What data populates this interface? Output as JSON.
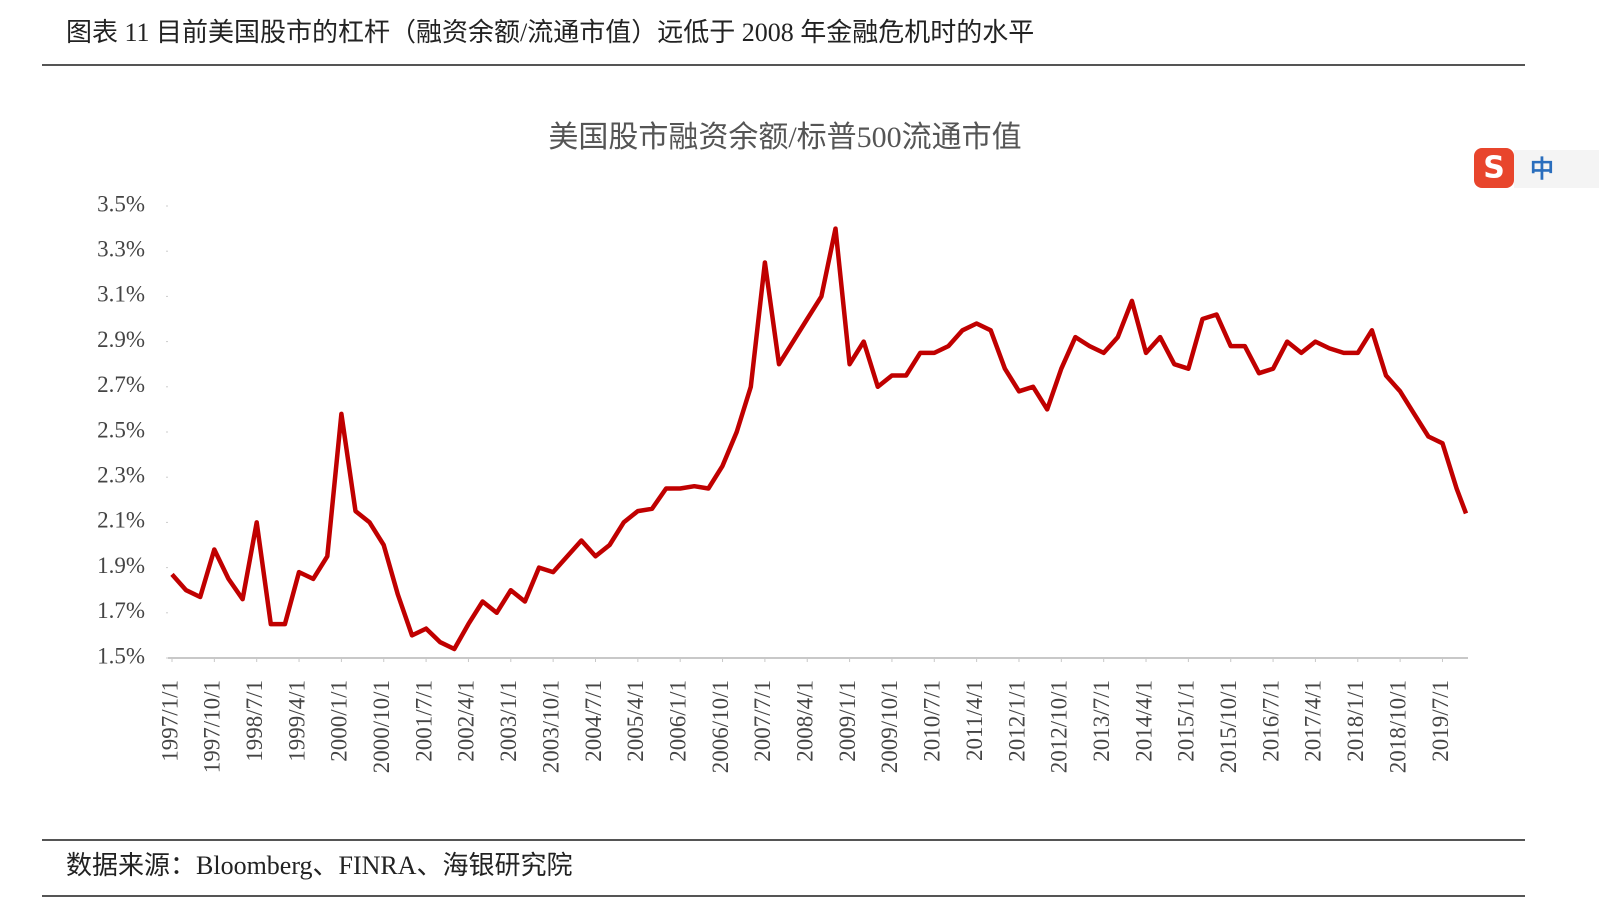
{
  "header": {
    "title": "图表 11  目前美国股市的杠杆（融资余额/流通市值）远低于 2008 年金融危机时的水平"
  },
  "footer": {
    "source": "数据来源：Bloomberg、FINRA、海银研究院"
  },
  "ime_badge": "中",
  "chart_data": {
    "type": "line",
    "title": "美国股市融资余额/标普500流通市值",
    "x": [
      "1997/1/1",
      "1997/4/1",
      "1997/7/1",
      "1997/10/1",
      "1998/1/1",
      "1998/4/1",
      "1998/7/1",
      "1998/10/1",
      "1999/1/1",
      "1999/4/1",
      "1999/7/1",
      "1999/10/1",
      "2000/1/1",
      "2000/4/1",
      "2000/7/1",
      "2000/10/1",
      "2001/1/1",
      "2001/4/1",
      "2001/7/1",
      "2001/10/1",
      "2002/1/1",
      "2002/4/1",
      "2002/7/1",
      "2002/10/1",
      "2003/1/1",
      "2003/4/1",
      "2003/7/1",
      "2003/10/1",
      "2004/1/1",
      "2004/4/1",
      "2004/7/1",
      "2004/10/1",
      "2005/1/1",
      "2005/4/1",
      "2005/7/1",
      "2005/10/1",
      "2006/1/1",
      "2006/4/1",
      "2006/7/1",
      "2006/10/1",
      "2007/1/1",
      "2007/4/1",
      "2007/7/1",
      "2007/10/1",
      "2008/1/1",
      "2008/4/1",
      "2008/7/1",
      "2008/10/1",
      "2009/1/1",
      "2009/4/1",
      "2009/7/1",
      "2009/10/1",
      "2010/1/1",
      "2010/4/1",
      "2010/7/1",
      "2010/10/1",
      "2011/1/1",
      "2011/4/1",
      "2011/7/1",
      "2011/10/1",
      "2012/1/1",
      "2012/4/1",
      "2012/7/1",
      "2012/10/1",
      "2013/1/1",
      "2013/4/1",
      "2013/7/1",
      "2013/10/1",
      "2014/1/1",
      "2014/4/1",
      "2014/7/1",
      "2014/10/1",
      "2015/1/1",
      "2015/4/1",
      "2015/7/1",
      "2015/10/1",
      "2016/1/1",
      "2016/4/1",
      "2016/7/1",
      "2016/10/1",
      "2017/1/1",
      "2017/4/1",
      "2017/7/1",
      "2017/10/1",
      "2018/1/1",
      "2018/4/1",
      "2018/7/1",
      "2018/10/1",
      "2019/1/1",
      "2019/4/1",
      "2019/7/1",
      "2019/10/1",
      "2019/12/1"
    ],
    "series": [
      {
        "color": "#c00000",
        "values": [
          1.87,
          1.8,
          1.77,
          1.98,
          1.85,
          1.76,
          2.1,
          1.65,
          1.65,
          1.88,
          1.85,
          1.95,
          2.58,
          2.15,
          2.1,
          2.0,
          1.78,
          1.6,
          1.63,
          1.57,
          1.54,
          1.65,
          1.75,
          1.7,
          1.8,
          1.75,
          1.9,
          1.88,
          1.95,
          2.02,
          1.95,
          2.0,
          2.1,
          2.15,
          2.16,
          2.25,
          2.25,
          2.26,
          2.25,
          2.35,
          2.5,
          2.7,
          3.25,
          2.8,
          2.9,
          3.0,
          3.1,
          3.4,
          2.8,
          2.9,
          2.7,
          2.75,
          2.75,
          2.85,
          2.85,
          2.88,
          2.95,
          2.98,
          2.95,
          2.78,
          2.68,
          2.7,
          2.6,
          2.78,
          2.92,
          2.88,
          2.85,
          2.92,
          3.08,
          2.85,
          2.92,
          2.8,
          2.78,
          3.0,
          3.02,
          2.88,
          2.88,
          2.76,
          2.78,
          2.9,
          2.85,
          2.9,
          2.87,
          2.85,
          2.85,
          2.95,
          2.75,
          2.68,
          2.58,
          2.48,
          2.45,
          2.25,
          2.14
        ]
      }
    ],
    "xlim": [
      "1997/1/1",
      "2019/12/1"
    ],
    "xticks": [
      "1997/1/1",
      "1997/10/1",
      "1998/7/1",
      "1999/4/1",
      "2000/1/1",
      "2000/10/1",
      "2001/7/1",
      "2002/4/1",
      "2003/1/1",
      "2003/10/1",
      "2004/7/1",
      "2005/4/1",
      "2006/1/1",
      "2006/10/1",
      "2007/7/1",
      "2008/4/1",
      "2009/1/1",
      "2009/10/1",
      "2010/7/1",
      "2011/4/1",
      "2012/1/1",
      "2012/10/1",
      "2013/7/1",
      "2014/4/1",
      "2015/1/1",
      "2015/10/1",
      "2016/7/1",
      "2017/4/1",
      "2018/1/1",
      "2018/10/1",
      "2019/7/1"
    ],
    "ylim": [
      1.5,
      3.5
    ],
    "yticks": [
      {
        "value": 1.5,
        "label": "1.5%"
      },
      {
        "value": 1.7,
        "label": "1.7%"
      },
      {
        "value": 1.9,
        "label": "1.9%"
      },
      {
        "value": 2.1,
        "label": "2.1%"
      },
      {
        "value": 2.3,
        "label": "2.3%"
      },
      {
        "value": 2.5,
        "label": "2.5%"
      },
      {
        "value": 2.7,
        "label": "2.7%"
      },
      {
        "value": 2.9,
        "label": "2.9%"
      },
      {
        "value": 3.1,
        "label": "3.1%"
      },
      {
        "value": 3.3,
        "label": "3.3%"
      },
      {
        "value": 3.5,
        "label": "3.5%"
      }
    ],
    "grid": false
  }
}
